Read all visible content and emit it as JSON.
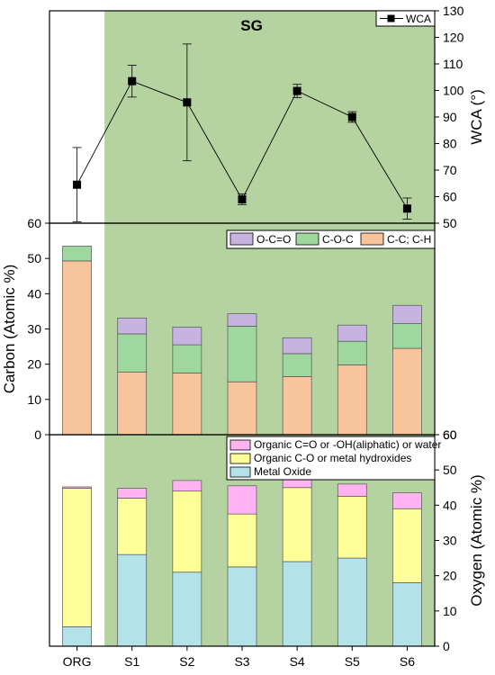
{
  "chart_data": [
    {
      "type": "line",
      "title": "",
      "annotation": "SG",
      "categories": [
        "ORG",
        "S1",
        "S2",
        "S3",
        "S4",
        "S5",
        "S6"
      ],
      "xlabel": "",
      "ylabel": "WCA (°)",
      "y_axis_side": "right",
      "ylim": [
        50,
        130
      ],
      "yticks": [
        "50",
        "60",
        "70",
        "80",
        "90",
        "100",
        "110",
        "120",
        "130"
      ],
      "left_tick_label": "60",
      "legend": {
        "position": "top-right",
        "entries": [
          "WCA"
        ]
      },
      "series": [
        {
          "name": "WCA",
          "values": [
            64.5,
            103.5,
            95.5,
            59,
            99.8,
            90,
            55.5
          ],
          "error": [
            14,
            6,
            22,
            2,
            2.5,
            2,
            4
          ]
        }
      ],
      "shaded_region": {
        "from_category": "S1",
        "to_category": "S6",
        "color": "#b5d3a0"
      },
      "grid": false
    },
    {
      "type": "bar",
      "stacked": true,
      "categories": [
        "ORG",
        "S1",
        "S2",
        "S3",
        "S4",
        "S5",
        "S6"
      ],
      "xlabel": "",
      "ylabel": "Carbon (Atomic %)",
      "ylim": [
        0,
        60
      ],
      "yticks": [
        "0",
        "10",
        "20",
        "30",
        "40",
        "50",
        "60"
      ],
      "right_tick_label": "60",
      "legend": {
        "position": "top-right",
        "entries": [
          "O-C=O",
          "C-O-C",
          "C-C; C-H"
        ]
      },
      "series": [
        {
          "name": "C-C; C-H",
          "color": "#f8c49c",
          "values": [
            49.3,
            17.8,
            17.5,
            15.0,
            16.5,
            19.8,
            24.5
          ]
        },
        {
          "name": "C-O-C",
          "color": "#9ed89e",
          "values": [
            4.2,
            10.8,
            8.0,
            15.8,
            6.5,
            6.7,
            7.0
          ]
        },
        {
          "name": "O-C=O",
          "color": "#c7b3e0",
          "values": [
            0,
            4.5,
            5.0,
            3.5,
            4.5,
            4.6,
            5.2
          ]
        }
      ],
      "grid": false
    },
    {
      "type": "bar",
      "stacked": true,
      "categories": [
        "ORG",
        "S1",
        "S2",
        "S3",
        "S4",
        "S5",
        "S6"
      ],
      "xlabel": "",
      "ylabel": "Oxygen (Atomic %)",
      "y_axis_side": "right",
      "ylim": [
        0,
        60
      ],
      "yticks": [
        "0",
        "10",
        "20",
        "30",
        "40",
        "50",
        "60"
      ],
      "legend": {
        "position": "top-right",
        "entries": [
          "Organic C=O or -OH(aliphatic) or water",
          "Organic C-O or metal hydroxides",
          "Metal Oxide"
        ]
      },
      "series": [
        {
          "name": "Metal Oxide",
          "color": "#b3e3e8",
          "values": [
            5.5,
            26.0,
            21.0,
            22.5,
            24.0,
            25.0,
            18.0
          ]
        },
        {
          "name": "Organic C-O or metal hydroxides",
          "color": "#ffff99",
          "values": [
            39.3,
            16.0,
            23.0,
            15.0,
            21.0,
            17.5,
            21.0
          ]
        },
        {
          "name": "Organic C=O or -OH(aliphatic) or water",
          "color": "#ffb3f0",
          "values": [
            0.4,
            2.8,
            3.0,
            8.0,
            2.5,
            3.5,
            4.5
          ]
        }
      ],
      "grid": false
    }
  ]
}
